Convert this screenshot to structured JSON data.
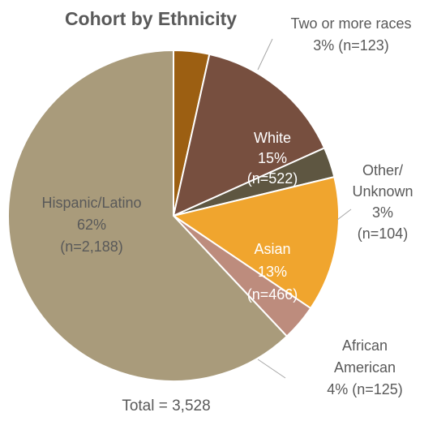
{
  "chart_data": {
    "type": "pie",
    "title": "Cohort by Ethnicity",
    "footer": "Total = 3,528",
    "total": 3528,
    "slices": [
      {
        "name": "Two or more races",
        "count": 123,
        "percent": 3,
        "color": "#9c5f12",
        "label_lines": [
          "Two or more races",
          "3% (n=123)"
        ],
        "label_inside": false
      },
      {
        "name": "White",
        "count": 522,
        "percent": 15,
        "color": "#774f3f",
        "label_lines": [
          "White",
          "15%",
          "(n=522)"
        ],
        "label_inside": true
      },
      {
        "name": "Other/Unknown",
        "count": 104,
        "percent": 3,
        "color": "#5e5641",
        "label_lines": [
          "Other/",
          "Unknown",
          "3%",
          "(n=104)"
        ],
        "label_inside": false
      },
      {
        "name": "Asian",
        "count": 466,
        "percent": 13,
        "color": "#f0a52e",
        "label_lines": [
          "Asian",
          "13%",
          "(n=466)"
        ],
        "label_inside": true
      },
      {
        "name": "African American",
        "count": 125,
        "percent": 4,
        "color": "#bd8c7d",
        "label_lines": [
          "African",
          "American",
          "4% (n=125)"
        ],
        "label_inside": false
      },
      {
        "name": "Hispanic/Latino",
        "count": 2188,
        "percent": 62,
        "color": "#a99b7b",
        "label_lines": [
          "Hispanic/Latino",
          "62%",
          "(n=2,188)"
        ],
        "label_inside": true
      }
    ]
  }
}
